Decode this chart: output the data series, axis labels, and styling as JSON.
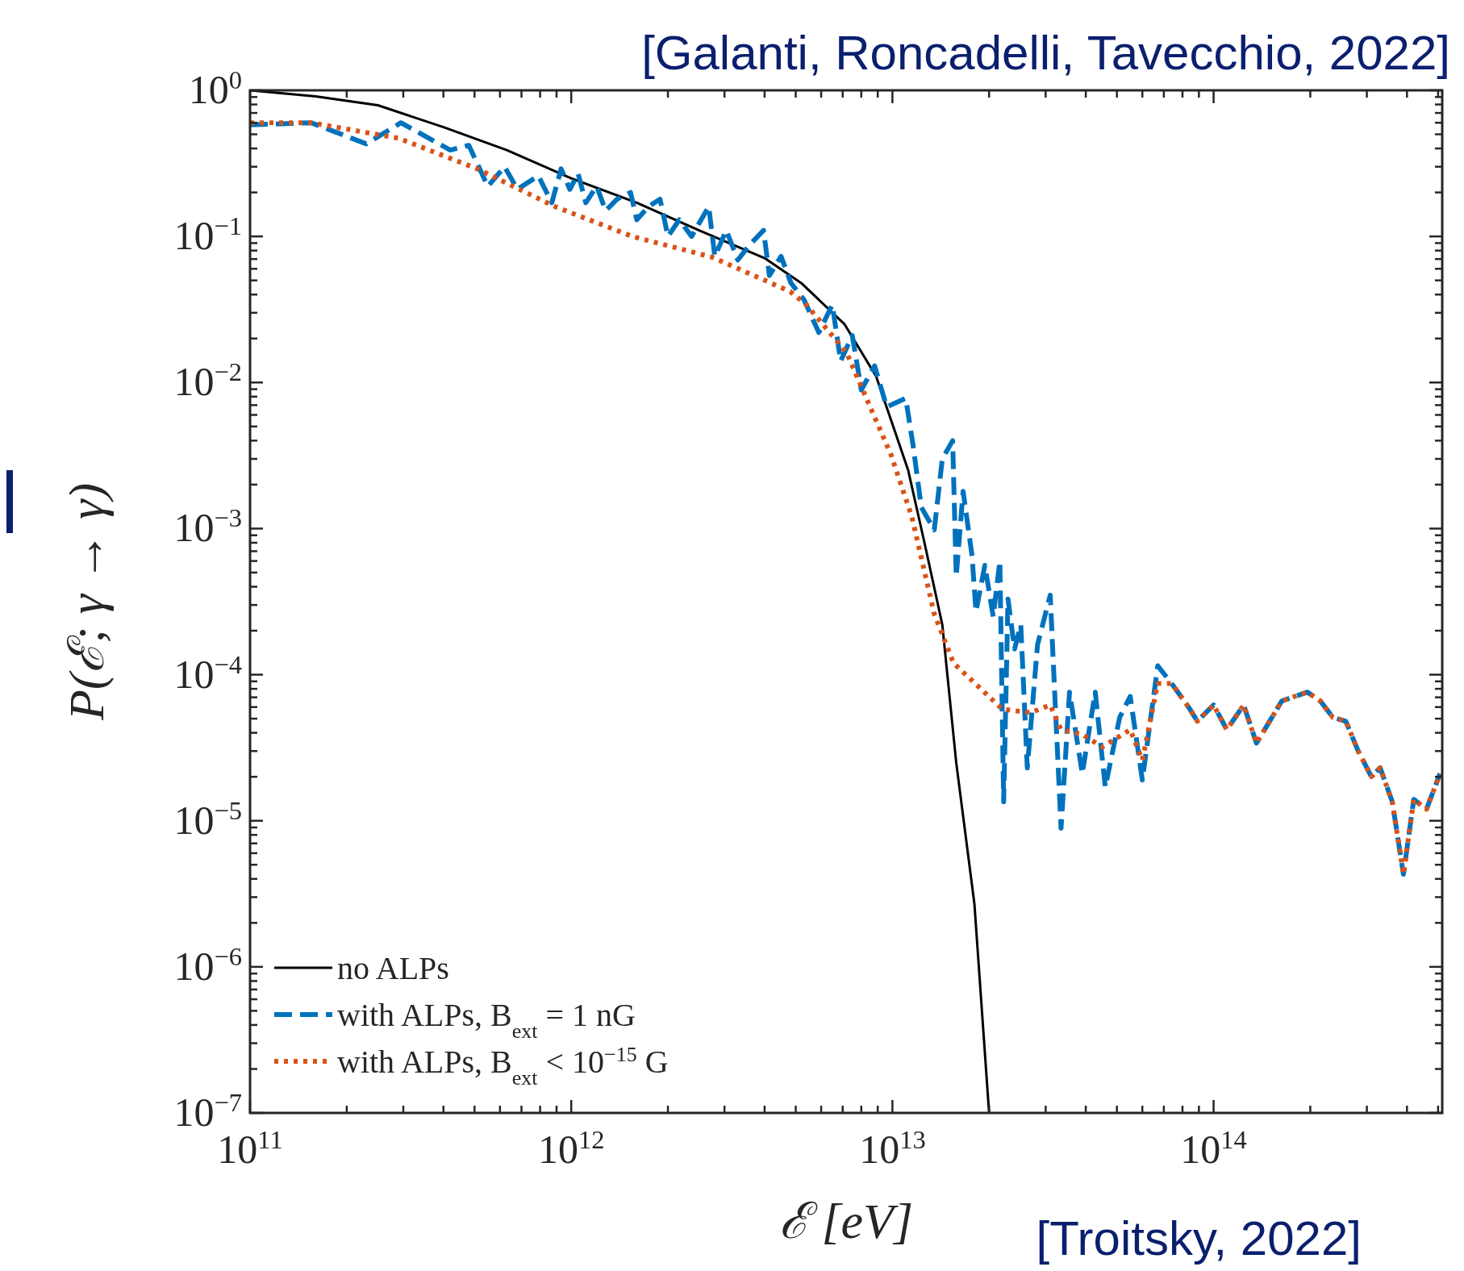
{
  "chart_data": {
    "type": "line",
    "xlabel": "ℰ [eV]",
    "ylabel": "P(ℰ; γ → γ)",
    "log": "xy",
    "legend": "bottom left",
    "annotations": [
      "[Galanti, Roncadelli, Tavecchio, 2022]",
      "[Troitsky, 2022]"
    ],
    "xlim": [
      100000000000.0,
      515000000000000.0
    ],
    "ylim": [
      1e-07,
      1
    ],
    "xticks": [
      {
        "value": 100000000000.0,
        "label": "10$^{11}$"
      },
      {
        "value": 1000000000000.0,
        "label": "10$^{12}$"
      },
      {
        "value": 10000000000000.0,
        "label": "10$^{13}$"
      },
      {
        "value": 100000000000000.0,
        "label": "10$^{14}$"
      },
      {
        "value": 200000000000.0,
        "label": null
      },
      {
        "value": 300000000000.0,
        "label": null
      },
      {
        "value": 400000000000.0,
        "label": null
      },
      {
        "value": 500000000000.0,
        "label": null
      },
      {
        "value": 600000000000.0,
        "label": null
      },
      {
        "value": 700000000000.0,
        "label": null
      },
      {
        "value": 800000000000.0,
        "label": null
      },
      {
        "value": 900000000000.0,
        "label": null
      },
      {
        "value": 2000000000000.0,
        "label": null
      },
      {
        "value": 3000000000000.0,
        "label": null
      },
      {
        "value": 4000000000000.0,
        "label": null
      },
      {
        "value": 5000000000000.0,
        "label": null
      },
      {
        "value": 6000000000000.0,
        "label": null
      },
      {
        "value": 7000000000000.0,
        "label": null
      },
      {
        "value": 8000000000000.0,
        "label": null
      },
      {
        "value": 9000000000000.0,
        "label": null
      },
      {
        "value": 20000000000000.0,
        "label": null
      },
      {
        "value": 30000000000000.0,
        "label": null
      },
      {
        "value": 40000000000000.0,
        "label": null
      },
      {
        "value": 50000000000000.0,
        "label": null
      },
      {
        "value": 60000000000000.0,
        "label": null
      },
      {
        "value": 70000000000000.0,
        "label": null
      },
      {
        "value": 80000000000000.0,
        "label": null
      },
      {
        "value": 90000000000000.0,
        "label": null
      },
      {
        "value": 200000000000000.0,
        "label": null
      },
      {
        "value": 300000000000000.0,
        "label": null
      },
      {
        "value": 400000000000000.0,
        "label": null
      },
      {
        "value": 500000000000000.0,
        "label": null
      }
    ],
    "yticks": [
      {
        "value": 1e-07,
        "label": "10$^{−7}$"
      },
      {
        "value": 1e-06,
        "label": "10$^{−6}$"
      },
      {
        "value": 1e-05,
        "label": "10$^{−5}$"
      },
      {
        "value": 0.0001,
        "label": "10$^{−4}$"
      },
      {
        "value": 0.001,
        "label": "10$^{−3}$"
      },
      {
        "value": 0.01,
        "label": "10$^{−2}$"
      },
      {
        "value": 0.1,
        "label": "10$^{−1}$"
      },
      {
        "value": 1,
        "label": "10$^{0}$"
      },
      {
        "value": 2e-07,
        "label": null
      },
      {
        "value": 3e-07,
        "label": null
      },
      {
        "value": 4e-07,
        "label": null
      },
      {
        "value": 5e-07,
        "label": null
      },
      {
        "value": 6e-07,
        "label": null
      },
      {
        "value": 7e-07,
        "label": null
      },
      {
        "value": 8e-07,
        "label": null
      },
      {
        "value": 9e-07,
        "label": null
      },
      {
        "value": 2e-06,
        "label": null
      },
      {
        "value": 3e-06,
        "label": null
      },
      {
        "value": 4e-06,
        "label": null
      },
      {
        "value": 5e-06,
        "label": null
      },
      {
        "value": 6e-06,
        "label": null
      },
      {
        "value": 7e-06,
        "label": null
      },
      {
        "value": 8e-06,
        "label": null
      },
      {
        "value": 9e-06,
        "label": null
      },
      {
        "value": 2e-05,
        "label": null
      },
      {
        "value": 3e-05,
        "label": null
      },
      {
        "value": 4e-05,
        "label": null
      },
      {
        "value": 5e-05,
        "label": null
      },
      {
        "value": 6e-05,
        "label": null
      },
      {
        "value": 7e-05,
        "label": null
      },
      {
        "value": 8e-05,
        "label": null
      },
      {
        "value": 9e-05,
        "label": null
      },
      {
        "value": 0.0002,
        "label": null
      },
      {
        "value": 0.0003,
        "label": null
      },
      {
        "value": 0.0004,
        "label": null
      },
      {
        "value": 0.0005,
        "label": null
      },
      {
        "value": 0.0006,
        "label": null
      },
      {
        "value": 0.0007,
        "label": null
      },
      {
        "value": 0.0008,
        "label": null
      },
      {
        "value": 0.0009,
        "label": null
      },
      {
        "value": 0.002,
        "label": null
      },
      {
        "value": 0.003,
        "label": null
      },
      {
        "value": 0.004,
        "label": null
      },
      {
        "value": 0.005,
        "label": null
      },
      {
        "value": 0.006,
        "label": null
      },
      {
        "value": 0.007,
        "label": null
      },
      {
        "value": 0.008,
        "label": null
      },
      {
        "value": 0.009,
        "label": null
      },
      {
        "value": 0.02,
        "label": null
      },
      {
        "value": 0.03,
        "label": null
      },
      {
        "value": 0.04,
        "label": null
      },
      {
        "value": 0.05,
        "label": null
      },
      {
        "value": 0.06,
        "label": null
      },
      {
        "value": 0.07,
        "label": null
      },
      {
        "value": 0.08,
        "label": null
      },
      {
        "value": 0.09,
        "label": null
      },
      {
        "value": 0.2,
        "label": null
      },
      {
        "value": 0.3,
        "label": null
      },
      {
        "value": 0.4,
        "label": null
      },
      {
        "value": 0.5,
        "label": null
      },
      {
        "value": 0.6,
        "label": null
      },
      {
        "value": 0.7,
        "label": null
      },
      {
        "value": 0.8,
        "label": null
      },
      {
        "value": 0.9,
        "label": null
      }
    ],
    "series": [
      {
        "name": "no ALPs",
        "color": "#000000",
        "line_style": "solid",
        "x": [
          100000000000.0,
          160000000000.0,
          250000000000.0,
          400000000000.0,
          630000000000.0,
          1000000000000.0,
          1600000000000.0,
          2500000000000.0,
          4000000000000.0,
          5200000000000.0,
          7100000000000.0,
          8900000000000.0,
          11200000000000.0,
          12600000000000.0,
          14300000000000.0,
          15800000000000.0,
          18000000000000.0,
          20000000000000.0
        ],
        "values": [
          1,
          0.91,
          0.79,
          0.56,
          0.39,
          0.25,
          0.17,
          0.11,
          0.071,
          0.048,
          0.025,
          0.011,
          0.0025,
          0.00079,
          0.00022,
          2.5e-05,
          2.7e-06,
          1e-07
        ]
      },
      {
        "name": "with ALPs, B$_{ext}$ = 1 nG",
        "color": "#0072bd",
        "line_style": "dashed",
        "x": [
          100000000000.0,
          155000000000.0,
          230000000000.0,
          295000000000.0,
          420000000000.0,
          480000000000.0,
          550000000000.0,
          620000000000.0,
          680000000000.0,
          790000000000.0,
          870000000000.0,
          930000000000.0,
          990000000000.0,
          1050000000000.0,
          1110000000000.0,
          1200000000000.0,
          1280000000000.0,
          1390000000000.0,
          1530000000000.0,
          1600000000000.0,
          1740000000000.0,
          1890000000000.0,
          2000000000000.0,
          2170000000000.0,
          2370000000000.0,
          2680000000000.0,
          2800000000000.0,
          3040000000000.0,
          3300000000000.0,
          3600000000000.0,
          3970000000000.0,
          4140000000000.0,
          4500000000000.0,
          4830000000000.0,
          5300000000000.0,
          5900000000000.0,
          6500000000000.0,
          6900000000000.0,
          7500000000000.0,
          8000000000000.0,
          8800000000000.0,
          9600000000000.0,
          11000000000000.0,
          11600000000000.0,
          12300000000000.0,
          13500000000000.0,
          14300000000000.0,
          15400000000000.0,
          15800000000000.0,
          16600000000000.0,
          17700000000000.0,
          18200000000000.0,
          19400000000000.0,
          20600000000000.0,
          21600000000000.0,
          22200000000000.0,
          22900000000000.0,
          24000000000000.0,
          25100000000000.0,
          26300000000000.0,
          28300000000000.0,
          31000000000000.0,
          32000000000000.0,
          33500000000000.0,
          35600000000000.0,
          39000000000000.0,
          42800000000000.0,
          46000000000000.0,
          51000000000000.0,
          55000000000000.0,
          60000000000000.0,
          67000000000000.0,
          74000000000000.0,
          84000000000000.0,
          89000000000000.0,
          100000000000000.0,
          110000000000000.0,
          124000000000000.0,
          136000000000000.0,
          163000000000000.0,
          179000000000000.0,
          196000000000000.0,
          215000000000000.0,
          235000000000000.0,
          258000000000000.0,
          282000000000000.0,
          310000000000000.0,
          330000000000000.0,
          360000000000000.0,
          390000000000000.0,
          420000000000000.0,
          460000000000000.0,
          507000000000000.0
        ],
        "values": [
          0.58,
          0.6,
          0.43,
          0.6,
          0.39,
          0.42,
          0.22,
          0.3,
          0.21,
          0.26,
          0.17,
          0.29,
          0.21,
          0.27,
          0.17,
          0.22,
          0.15,
          0.18,
          0.2,
          0.13,
          0.16,
          0.18,
          0.1,
          0.13,
          0.1,
          0.16,
          0.073,
          0.11,
          0.069,
          0.088,
          0.11,
          0.054,
          0.073,
          0.048,
          0.037,
          0.022,
          0.034,
          0.014,
          0.021,
          0.0089,
          0.013,
          0.0068,
          0.0078,
          0.0037,
          0.0014,
          0.00098,
          0.003,
          0.004,
          0.00047,
          0.0018,
          0.00065,
          0.00027,
          0.00056,
          0.00025,
          0.0006,
          1.35e-05,
          0.00033,
          0.00015,
          0.00022,
          2.3e-05,
          0.00016,
          0.00035,
          7.6e-05,
          8.9e-06,
          7.6e-05,
          2.1e-05,
          7.6e-05,
          1.7e-05,
          5.1e-05,
          7.1e-05,
          1.9e-05,
          0.000115,
          8.7e-05,
          5.9e-05,
          4.8e-05,
          6.2e-05,
          4.2e-05,
          6.2e-05,
          3.4e-05,
          6.6e-05,
          7.1e-05,
          7.6e-05,
          6.6e-05,
          5.1e-05,
          4.8e-05,
          3e-05,
          2e-05,
          2.3e-05,
          1.35e-05,
          4.3e-06,
          1.4e-05,
          1.2e-05,
          2.1e-05
        ]
      },
      {
        "name": "with ALPs, B$_{ext}$ < 10$^{−15}$ G",
        "color": "#d95319",
        "line_style": "dotted",
        "x": [
          100000000000.0,
          155000000000.0,
          290000000000.0,
          510000000000.0,
          890000000000.0,
          1550000000000.0,
          2750000000000.0,
          4800000000000.0,
          5400000000000.0,
          7200000000000.0,
          9900000000000.0,
          11500000000000.0,
          13500000000000.0,
          15500000000000.0,
          22000000000000.0,
          27000000000000.0,
          31000000000000.0,
          33500000000000.0,
          39000000000000.0,
          45000000000000.0,
          55000000000000.0,
          60000000000000.0,
          67000000000000.0,
          74000000000000.0,
          84000000000000.0,
          89000000000000.0,
          100000000000000.0,
          110000000000000.0,
          124000000000000.0,
          136000000000000.0,
          163000000000000.0,
          179000000000000.0,
          196000000000000.0,
          215000000000000.0,
          235000000000000.0,
          258000000000000.0,
          282000000000000.0,
          310000000000000.0,
          330000000000000.0,
          360000000000000.0,
          390000000000000.0,
          420000000000000.0,
          460000000000000.0,
          507000000000000.0
        ],
        "values": [
          0.6,
          0.6,
          0.47,
          0.29,
          0.16,
          0.1,
          0.072,
          0.042,
          0.034,
          0.016,
          0.0032,
          0.0012,
          0.00026,
          0.00012,
          5.8e-05,
          5.5e-05,
          6.2e-05,
          4.2e-05,
          3.9e-05,
          3.2e-05,
          4.2e-05,
          2.6e-05,
          8.7e-05,
          8.7e-05,
          5.9e-05,
          4.8e-05,
          6.2e-05,
          4.2e-05,
          6.2e-05,
          3.4e-05,
          6.6e-05,
          7.1e-05,
          7.6e-05,
          6.6e-05,
          5.1e-05,
          4.8e-05,
          3e-05,
          2e-05,
          2.3e-05,
          1.35e-05,
          4.3e-06,
          1.4e-05,
          1.2e-05,
          2.1e-05
        ]
      }
    ]
  }
}
